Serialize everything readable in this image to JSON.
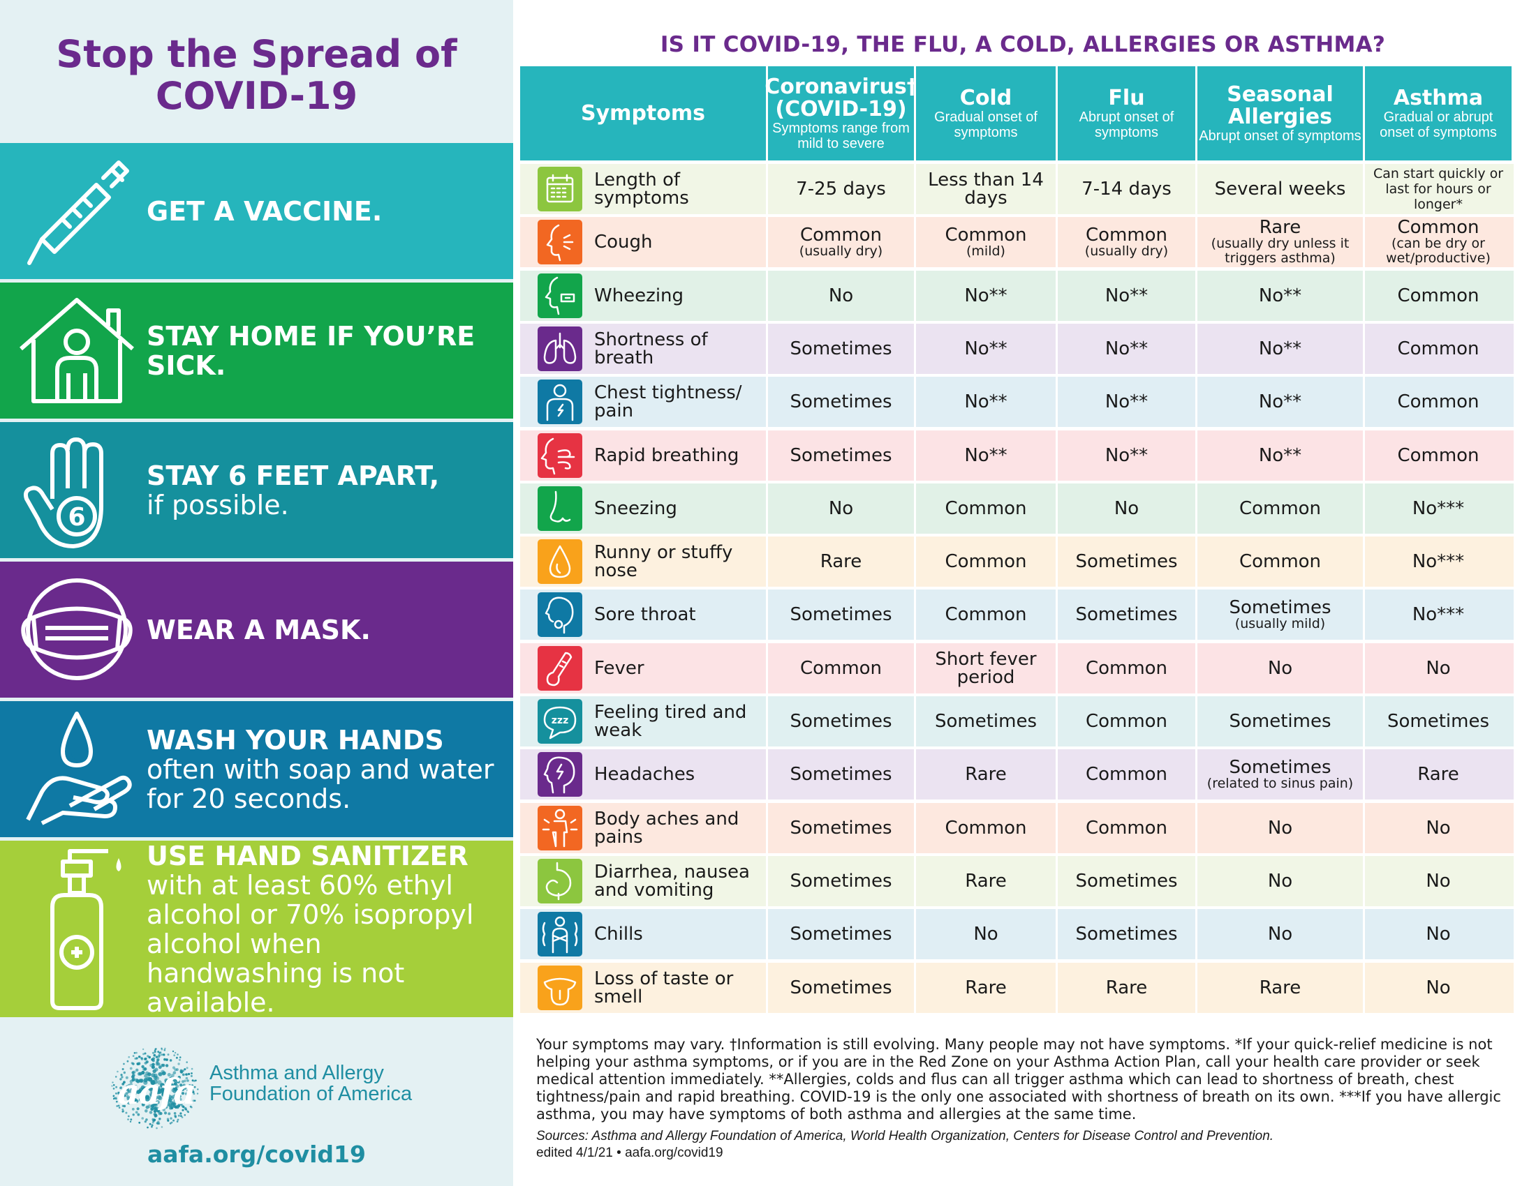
{
  "left_panel": {
    "title_line1": "Stop the Spread of",
    "title_line2": "COVID-19",
    "bands": [
      {
        "bold": "GET A VACCINE.",
        "rest": "",
        "color": "#26b5bc",
        "icon": "syringe-icon"
      },
      {
        "bold": "STAY HOME IF YOU’RE SICK.",
        "rest": "",
        "color": "#12a54b",
        "icon": "house-person-icon"
      },
      {
        "bold": "STAY 6 FEET APART,",
        "rest": "if possible.",
        "color": "#15909d",
        "icon": "hand-six-icon"
      },
      {
        "bold": "WEAR A MASK.",
        "rest": "",
        "color": "#6a2a8c",
        "icon": "face-mask-icon"
      },
      {
        "bold": "WASH YOUR HANDS",
        "rest": "often with soap and water for 20 seconds.",
        "color": "#0f79a4",
        "icon": "hand-washing-icon"
      },
      {
        "bold": "USE HAND SANITIZER",
        "rest": "with at least 60% ethyl alcohol or 70% isopropyl alcohol when handwashing is not available.",
        "color": "#a5cf3a",
        "icon": "sanitizer-bottle-icon"
      }
    ],
    "logo_word": "aafa",
    "org_line1": "Asthma and Allergy",
    "org_line2": "Foundation of America",
    "url": "aafa.org/covid19"
  },
  "table": {
    "title": "IS IT COVID-19, THE FLU, A COLD, ALLERGIES OR ASTHMA?",
    "headers": [
      {
        "main": "Symptoms",
        "sub": ""
      },
      {
        "main": "Coronavirus† (COVID-19)",
        "sub": "Symptoms range from mild to severe"
      },
      {
        "main": "Cold",
        "sub": "Gradual onset of symptoms"
      },
      {
        "main": "Flu",
        "sub": "Abrupt onset of symptoms"
      },
      {
        "main": "Seasonal Allergies",
        "sub": "Abrupt onset of symptoms"
      },
      {
        "main": "Asthma",
        "sub": "Gradual or abrupt onset of symptoms"
      }
    ],
    "rows": [
      {
        "symptom": "Length of symptoms",
        "icon": "calendar-icon",
        "icon_color": "#8cc63f",
        "bg": "#f1f6e6",
        "cells": [
          {
            "m": "7-25 days"
          },
          {
            "m": "Less than 14 days"
          },
          {
            "m": "7-14 days"
          },
          {
            "m": "Several weeks"
          },
          {
            "s": "Can start quickly or last for hours or longer*"
          }
        ]
      },
      {
        "symptom": "Cough",
        "icon": "cough-icon",
        "icon_color": "#f26722",
        "bg": "#fde8df",
        "cells": [
          {
            "m": "Common",
            "s": "(usually dry)"
          },
          {
            "m": "Common",
            "s": "(mild)"
          },
          {
            "m": "Common",
            "s": "(usually dry)"
          },
          {
            "m": "Rare",
            "s": "(usually dry unless it triggers asthma)"
          },
          {
            "m": "Common",
            "s": "(can be dry or wet/productive)"
          }
        ]
      },
      {
        "symptom": "Wheezing",
        "icon": "wheezing-icon",
        "icon_color": "#12a54b",
        "bg": "#e1f1e7",
        "cells": [
          {
            "m": "No"
          },
          {
            "m": "No**"
          },
          {
            "m": "No**"
          },
          {
            "m": "No**"
          },
          {
            "m": "Common"
          }
        ]
      },
      {
        "symptom": "Shortness of breath",
        "icon": "lungs-icon",
        "icon_color": "#6a2a8c",
        "bg": "#ebe3f1",
        "cells": [
          {
            "m": "Sometimes"
          },
          {
            "m": "No**"
          },
          {
            "m": "No**"
          },
          {
            "m": "No**"
          },
          {
            "m": "Common"
          }
        ]
      },
      {
        "symptom": "Chest tightness/ pain",
        "icon": "chest-pain-icon",
        "icon_color": "#0f79a4",
        "bg": "#e0eef4",
        "cells": [
          {
            "m": "Sometimes"
          },
          {
            "m": "No**"
          },
          {
            "m": "No**"
          },
          {
            "m": "No**"
          },
          {
            "m": "Common"
          }
        ]
      },
      {
        "symptom": "Rapid breathing",
        "icon": "rapid-breathing-icon",
        "icon_color": "#e63343",
        "bg": "#fce3e5",
        "cells": [
          {
            "m": "Sometimes"
          },
          {
            "m": "No**"
          },
          {
            "m": "No**"
          },
          {
            "m": "No**"
          },
          {
            "m": "Common"
          }
        ]
      },
      {
        "symptom": "Sneezing",
        "icon": "nose-icon",
        "icon_color": "#12a54b",
        "bg": "#e1f1e7",
        "cells": [
          {
            "m": "No"
          },
          {
            "m": "Common"
          },
          {
            "m": "No"
          },
          {
            "m": "Common"
          },
          {
            "m": "No***"
          }
        ]
      },
      {
        "symptom": "Runny or stuffy nose",
        "icon": "drop-icon",
        "icon_color": "#f9a21b",
        "bg": "#fdf1df",
        "cells": [
          {
            "m": "Rare"
          },
          {
            "m": "Common"
          },
          {
            "m": "Sometimes"
          },
          {
            "m": "Common"
          },
          {
            "m": "No***"
          }
        ]
      },
      {
        "symptom": "Sore throat",
        "icon": "throat-icon",
        "icon_color": "#0f79a4",
        "bg": "#e0eef4",
        "cells": [
          {
            "m": "Sometimes"
          },
          {
            "m": "Common"
          },
          {
            "m": "Sometimes"
          },
          {
            "m": "Sometimes",
            "s": "(usually mild)"
          },
          {
            "m": "No***"
          }
        ]
      },
      {
        "symptom": "Fever",
        "icon": "thermometer-icon",
        "icon_color": "#e63343",
        "bg": "#fce3e5",
        "cells": [
          {
            "m": "Common"
          },
          {
            "m": "Short fever period"
          },
          {
            "m": "Common"
          },
          {
            "m": "No"
          },
          {
            "m": "No"
          }
        ]
      },
      {
        "symptom": "Feeling tired and weak",
        "icon": "sleep-icon",
        "icon_color": "#15909d",
        "bg": "#e0f0f1",
        "cells": [
          {
            "m": "Sometimes"
          },
          {
            "m": "Sometimes"
          },
          {
            "m": "Common"
          },
          {
            "m": "Sometimes"
          },
          {
            "m": "Sometimes"
          }
        ]
      },
      {
        "symptom": "Headaches",
        "icon": "headache-icon",
        "icon_color": "#6a2a8c",
        "bg": "#ebe3f1",
        "cells": [
          {
            "m": "Sometimes"
          },
          {
            "m": "Rare"
          },
          {
            "m": "Common"
          },
          {
            "m": "Sometimes",
            "s": "(related to sinus pain)"
          },
          {
            "m": "Rare"
          }
        ]
      },
      {
        "symptom": "Body aches and pains",
        "icon": "body-aches-icon",
        "icon_color": "#f26722",
        "bg": "#fde8df",
        "cells": [
          {
            "m": "Sometimes"
          },
          {
            "m": "Common"
          },
          {
            "m": "Common"
          },
          {
            "m": "No"
          },
          {
            "m": "No"
          }
        ]
      },
      {
        "symptom": "Diarrhea, nausea and vomiting",
        "icon": "stomach-icon",
        "icon_color": "#8cc63f",
        "bg": "#f1f6e6",
        "cells": [
          {
            "m": "Sometimes"
          },
          {
            "m": "Rare"
          },
          {
            "m": "Sometimes"
          },
          {
            "m": "No"
          },
          {
            "m": "No"
          }
        ]
      },
      {
        "symptom": "Chills",
        "icon": "chills-icon",
        "icon_color": "#0f79a4",
        "bg": "#e0eef4",
        "cells": [
          {
            "m": "Sometimes"
          },
          {
            "m": "No"
          },
          {
            "m": "Sometimes"
          },
          {
            "m": "No"
          },
          {
            "m": "No"
          }
        ]
      },
      {
        "symptom": "Loss of taste or smell",
        "icon": "tongue-icon",
        "icon_color": "#f9a21b",
        "bg": "#fdf1df",
        "cells": [
          {
            "m": "Sometimes"
          },
          {
            "m": "Rare"
          },
          {
            "m": "Rare"
          },
          {
            "m": "Rare"
          },
          {
            "m": "No"
          }
        ]
      }
    ],
    "notes": "Your symptoms may vary. †Information is still evolving. Many people may not have symptoms. *If your quick-relief medicine is not helping your asthma symptoms, or if you are in the Red Zone on your Asthma Action Plan, call your health care provider or seek medical attention immediately. **Allergies, colds and flus can all trigger asthma which can lead to shortness of breath, chest tightness/pain and rapid breathing. COVID-19 is the only one associated with shortness of breath on its own. ***If you have allergic asthma, you may have symptoms of both asthma and allergies at the same time.",
    "sources": "Sources: Asthma and Allergy Foundation of America, World Health Organization, Centers for Disease Control and Prevention.",
    "edited": "edited 4/1/21 • aafa.org/covid19"
  }
}
